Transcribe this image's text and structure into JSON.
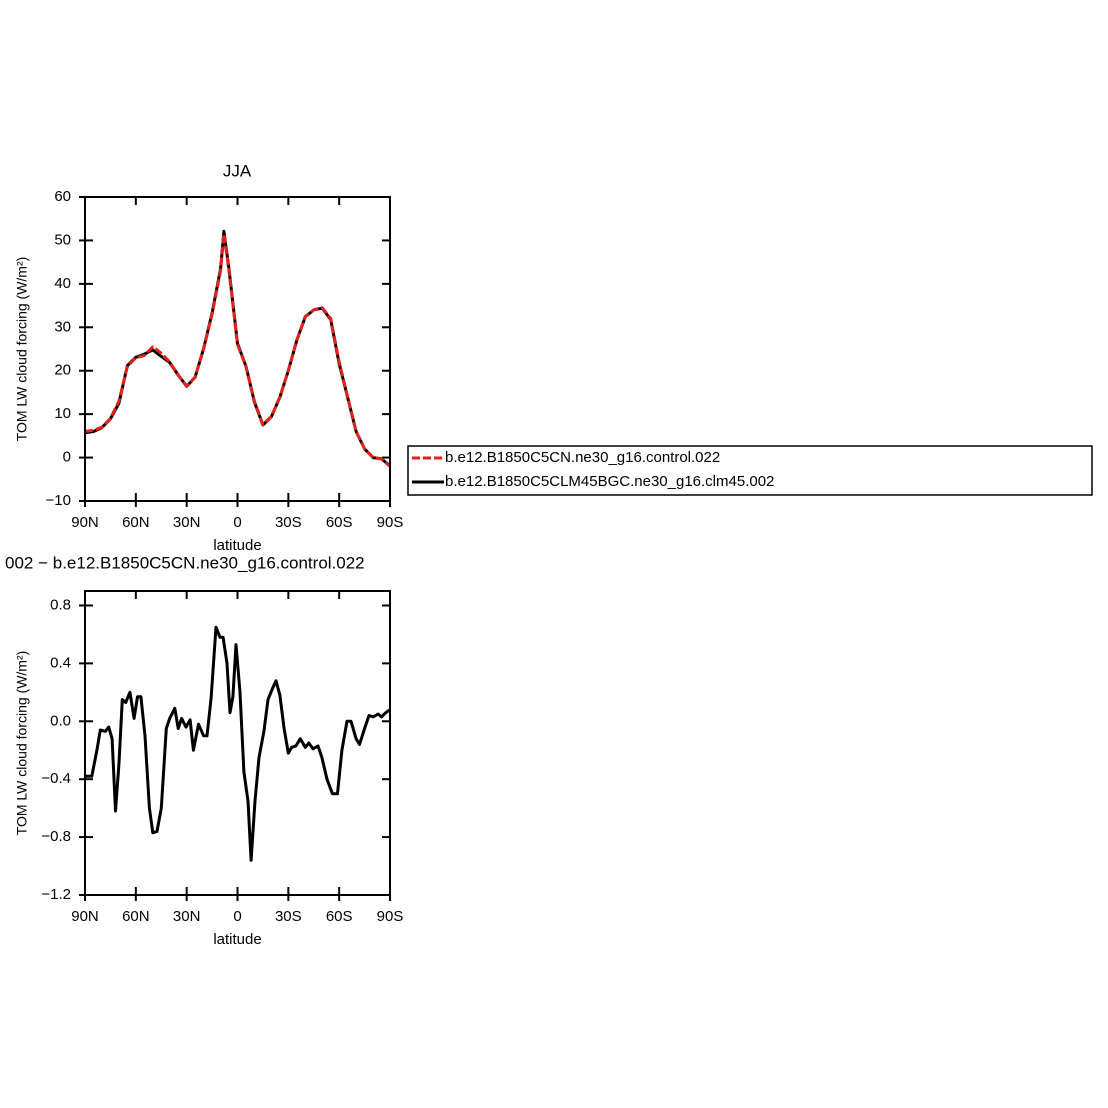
{
  "chart_data": [
    {
      "type": "line",
      "title": "JJA",
      "xlabel": "latitude",
      "ylabel": "TOM LW cloud forcing (W/m²)",
      "x": [
        90,
        85,
        80,
        75,
        70,
        65,
        60,
        55,
        50,
        45,
        40,
        35,
        30,
        25,
        20,
        15,
        10,
        8,
        5,
        0,
        -5,
        -10,
        -15,
        -20,
        -25,
        -30,
        -35,
        -40,
        -45,
        -50,
        -55,
        -60,
        -65,
        -70,
        -75,
        -80,
        -85,
        -90
      ],
      "series": [
        {
          "name": "b.e12.B1850C5CN.ne30_g16.control.022",
          "color": "#e8201a",
          "linestyle": "dashed",
          "values": [
            6,
            6.3,
            7,
            9,
            13,
            21,
            23,
            23.5,
            25.5,
            24,
            22,
            19,
            16.5,
            18.5,
            25,
            33,
            43,
            51.5,
            43,
            26,
            21,
            13,
            7.6,
            9.5,
            14,
            20,
            27,
            32.5,
            34,
            34.5,
            32,
            22,
            14,
            6,
            2,
            0,
            -0.3,
            -2
          ]
        },
        {
          "name": "b.e12.B1850C5CLM45BGC.ne30_g16.clm45.002",
          "color": "#000000",
          "linestyle": "solid",
          "values": [
            5.7,
            6,
            6.9,
            8.9,
            12.5,
            21.2,
            23.1,
            23.8,
            24.8,
            23.3,
            21.9,
            19,
            16.4,
            18.5,
            25.1,
            33.3,
            43.5,
            52.1,
            43.4,
            26.3,
            21,
            12.8,
            7.5,
            9.4,
            13.9,
            20,
            27,
            32.4,
            34,
            34.4,
            31.8,
            21.6,
            13.9,
            6,
            2,
            0,
            -0.3,
            -1.9
          ]
        }
      ],
      "xlim": [
        90,
        -90
      ],
      "xticks": [
        {
          "value": 90,
          "label": "90N"
        },
        {
          "value": 60,
          "label": "60N"
        },
        {
          "value": 30,
          "label": "30N"
        },
        0,
        {
          "value": -30,
          "label": "30S"
        },
        {
          "value": -60,
          "label": "60S"
        },
        {
          "value": -90,
          "label": "90S"
        }
      ],
      "ylim": [
        -10,
        60
      ],
      "yticks": [
        {
          "value": -10,
          "label": "−10"
        },
        0,
        10,
        20,
        30,
        40,
        50,
        60
      ],
      "legend": "right"
    },
    {
      "type": "line",
      "title": "002 − b.e12.B1850C5CN.ne30_g16.control.022",
      "xlabel": "latitude",
      "ylabel": "TOM LW cloud forcing (W/m²)",
      "x": [
        90,
        86,
        83,
        81,
        78,
        76,
        74,
        72,
        70,
        68,
        66,
        63.5,
        61,
        59,
        57,
        54.6,
        52,
        50,
        47.5,
        45,
        42,
        40,
        37,
        35,
        33,
        30.4,
        28,
        26,
        23,
        20,
        18,
        15.6,
        12.7,
        10.3,
        8.5,
        6.2,
        4.4,
        2.7,
        0.9,
        -1.5,
        -3.8,
        -6.2,
        -8,
        -10.3,
        -12.7,
        -15.6,
        -18,
        -20.4,
        -22.7,
        -25,
        -27.5,
        -30,
        -32,
        -34.5,
        -37,
        -40,
        -42,
        -44.6,
        -47.5,
        -49.8,
        -52.8,
        -56,
        -59,
        -61.6,
        -64.6,
        -67,
        -70,
        -72,
        -75,
        -77.6,
        -80,
        -83,
        -85,
        -87.6,
        -90
      ],
      "values": [
        -0.38,
        -0.38,
        -0.2,
        -0.06,
        -0.07,
        -0.04,
        -0.12,
        -0.62,
        -0.3,
        0.15,
        0.13,
        0.2,
        0.02,
        0.17,
        0.17,
        -0.1,
        -0.6,
        -0.77,
        -0.76,
        -0.6,
        -0.05,
        0.02,
        0.09,
        -0.05,
        0.02,
        -0.04,
        0.01,
        -0.2,
        -0.02,
        -0.1,
        -0.1,
        0.16,
        0.65,
        0.58,
        0.58,
        0.4,
        0.06,
        0.17,
        0.53,
        0.2,
        -0.35,
        -0.55,
        -0.96,
        -0.55,
        -0.25,
        -0.07,
        0.15,
        0.22,
        0.28,
        0.18,
        -0.05,
        -0.22,
        -0.18,
        -0.17,
        -0.12,
        -0.18,
        -0.15,
        -0.19,
        -0.17,
        -0.25,
        -0.4,
        -0.5,
        -0.5,
        -0.2,
        0,
        0,
        -0.12,
        -0.16,
        -0.05,
        0.04,
        0.03,
        0.05,
        0.03,
        0.06,
        0.08
      ],
      "color": "#000000",
      "xlim": [
        90,
        -90
      ],
      "xticks": [
        {
          "value": 90,
          "label": "90N"
        },
        {
          "value": 60,
          "label": "60N"
        },
        {
          "value": 30,
          "label": "30N"
        },
        0,
        {
          "value": -30,
          "label": "30S"
        },
        {
          "value": -60,
          "label": "60S"
        },
        {
          "value": -90,
          "label": "90S"
        }
      ],
      "ylim": [
        -1.2,
        0.9
      ],
      "yticks": [
        {
          "value": -1.2,
          "label": "−1.2"
        },
        {
          "value": -0.8,
          "label": "−0.8"
        },
        {
          "value": -0.4,
          "label": "−0.4"
        },
        {
          "value": 0,
          "label": "0.0"
        },
        0.4,
        0.8
      ]
    }
  ]
}
